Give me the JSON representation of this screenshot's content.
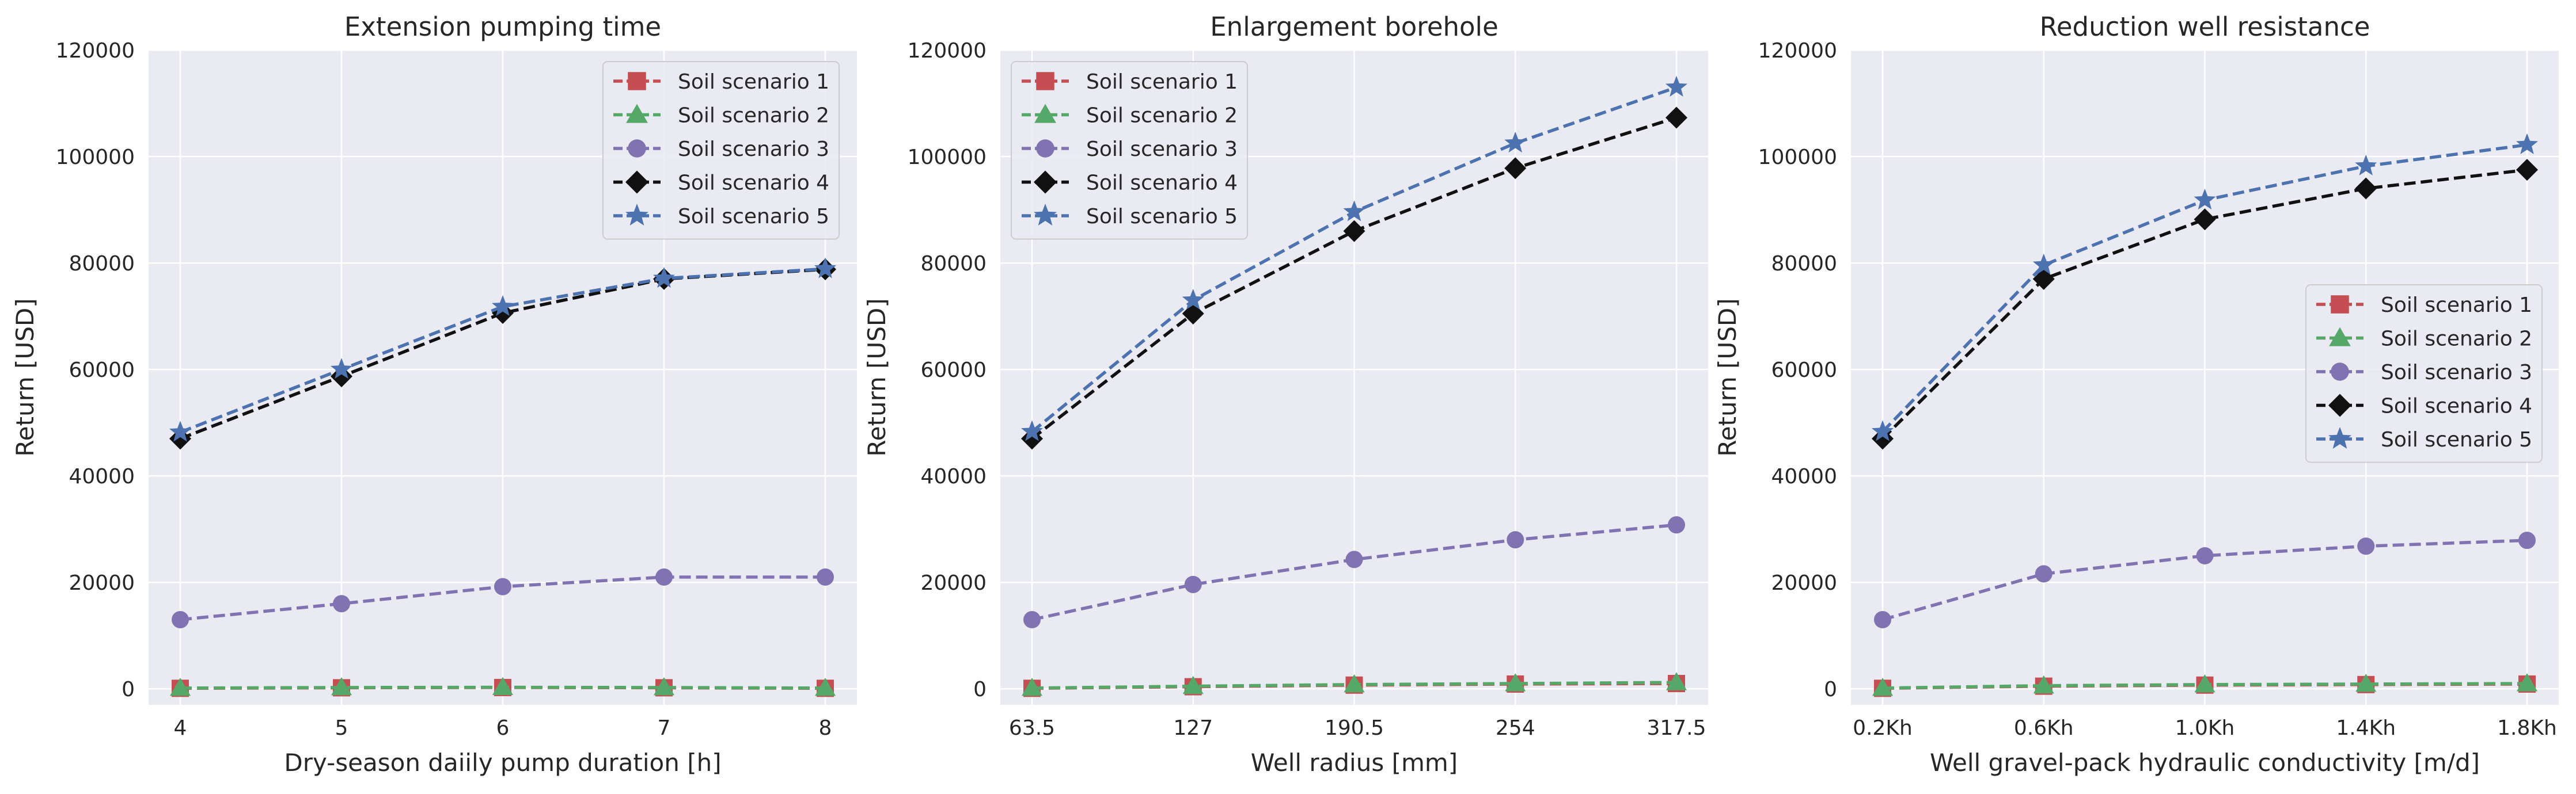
{
  "chart_data": [
    {
      "type": "line",
      "title": "Extension pumping time",
      "xlabel": "Dry-season daiily pump duration [h]",
      "ylabel": "Return [USD]",
      "categories": [
        "4",
        "5",
        "6",
        "7",
        "8"
      ],
      "ylim": [
        -3000,
        120000
      ],
      "yticks": [
        "0",
        "20000",
        "40000",
        "60000",
        "80000",
        "100000",
        "120000"
      ],
      "grid": true,
      "legend_position": "top-right",
      "series": [
        {
          "name": "Soil scenario 1",
          "values": [
            100,
            200,
            250,
            200,
            100
          ]
        },
        {
          "name": "Soil scenario 2",
          "values": [
            150,
            250,
            300,
            250,
            150
          ]
        },
        {
          "name": "Soil scenario 3",
          "values": [
            13000,
            16000,
            19200,
            21000,
            21000
          ]
        },
        {
          "name": "Soil scenario 4",
          "values": [
            47000,
            58700,
            70600,
            77000,
            78800
          ]
        },
        {
          "name": "Soil scenario 5",
          "values": [
            48200,
            60000,
            71800,
            77100,
            78900
          ]
        }
      ]
    },
    {
      "type": "line",
      "title": "Enlargement borehole",
      "xlabel": "Well radius [mm]",
      "ylabel": "Return [USD]",
      "categories": [
        "63.5",
        "127",
        "190.5",
        "254",
        "317.5"
      ],
      "ylim": [
        -3000,
        120000
      ],
      "yticks": [
        "0",
        "20000",
        "40000",
        "60000",
        "80000",
        "100000",
        "120000"
      ],
      "grid": true,
      "legend_position": "top-left",
      "series": [
        {
          "name": "Soil scenario 1",
          "values": [
            100,
            400,
            700,
            900,
            1000
          ]
        },
        {
          "name": "Soil scenario 2",
          "values": [
            150,
            500,
            800,
            1000,
            1200
          ]
        },
        {
          "name": "Soil scenario 3",
          "values": [
            13000,
            19600,
            24300,
            28000,
            30800
          ]
        },
        {
          "name": "Soil scenario 4",
          "values": [
            47000,
            70500,
            86000,
            97800,
            107300
          ]
        },
        {
          "name": "Soil scenario 5",
          "values": [
            48300,
            73000,
            89600,
            102500,
            113000
          ]
        }
      ]
    },
    {
      "type": "line",
      "title": "Reduction well resistance",
      "xlabel": "Well gravel-pack hydraulic conductivity [m/d]",
      "ylabel": "Return [USD]",
      "categories": [
        "0.2Kh",
        "0.6Kh",
        "1.0Kh",
        "1.4Kh",
        "1.8Kh"
      ],
      "ylim": [
        -3000,
        120000
      ],
      "yticks": [
        "0",
        "20000",
        "40000",
        "60000",
        "80000",
        "100000",
        "120000"
      ],
      "grid": true,
      "legend_position": "center-right",
      "series": [
        {
          "name": "Soil scenario 1",
          "values": [
            100,
            500,
            700,
            800,
            900
          ]
        },
        {
          "name": "Soil scenario 2",
          "values": [
            150,
            600,
            800,
            900,
            1000
          ]
        },
        {
          "name": "Soil scenario 3",
          "values": [
            13000,
            21600,
            25000,
            26800,
            27900
          ]
        },
        {
          "name": "Soil scenario 4",
          "values": [
            47000,
            77000,
            88200,
            94000,
            97500
          ]
        },
        {
          "name": "Soil scenario 5",
          "values": [
            48300,
            79600,
            91800,
            98200,
            102200
          ]
        }
      ]
    }
  ],
  "series_styles": [
    {
      "color": "#c44e52",
      "marker": "square"
    },
    {
      "color": "#55a868",
      "marker": "triangle"
    },
    {
      "color": "#8172b2",
      "marker": "circle"
    },
    {
      "color": "#111111",
      "marker": "diamond"
    },
    {
      "color": "#4c72b0",
      "marker": "star"
    }
  ],
  "colors": {
    "axes_background": "#eaeaf2",
    "grid": "#ffffff",
    "text": "#262626"
  }
}
